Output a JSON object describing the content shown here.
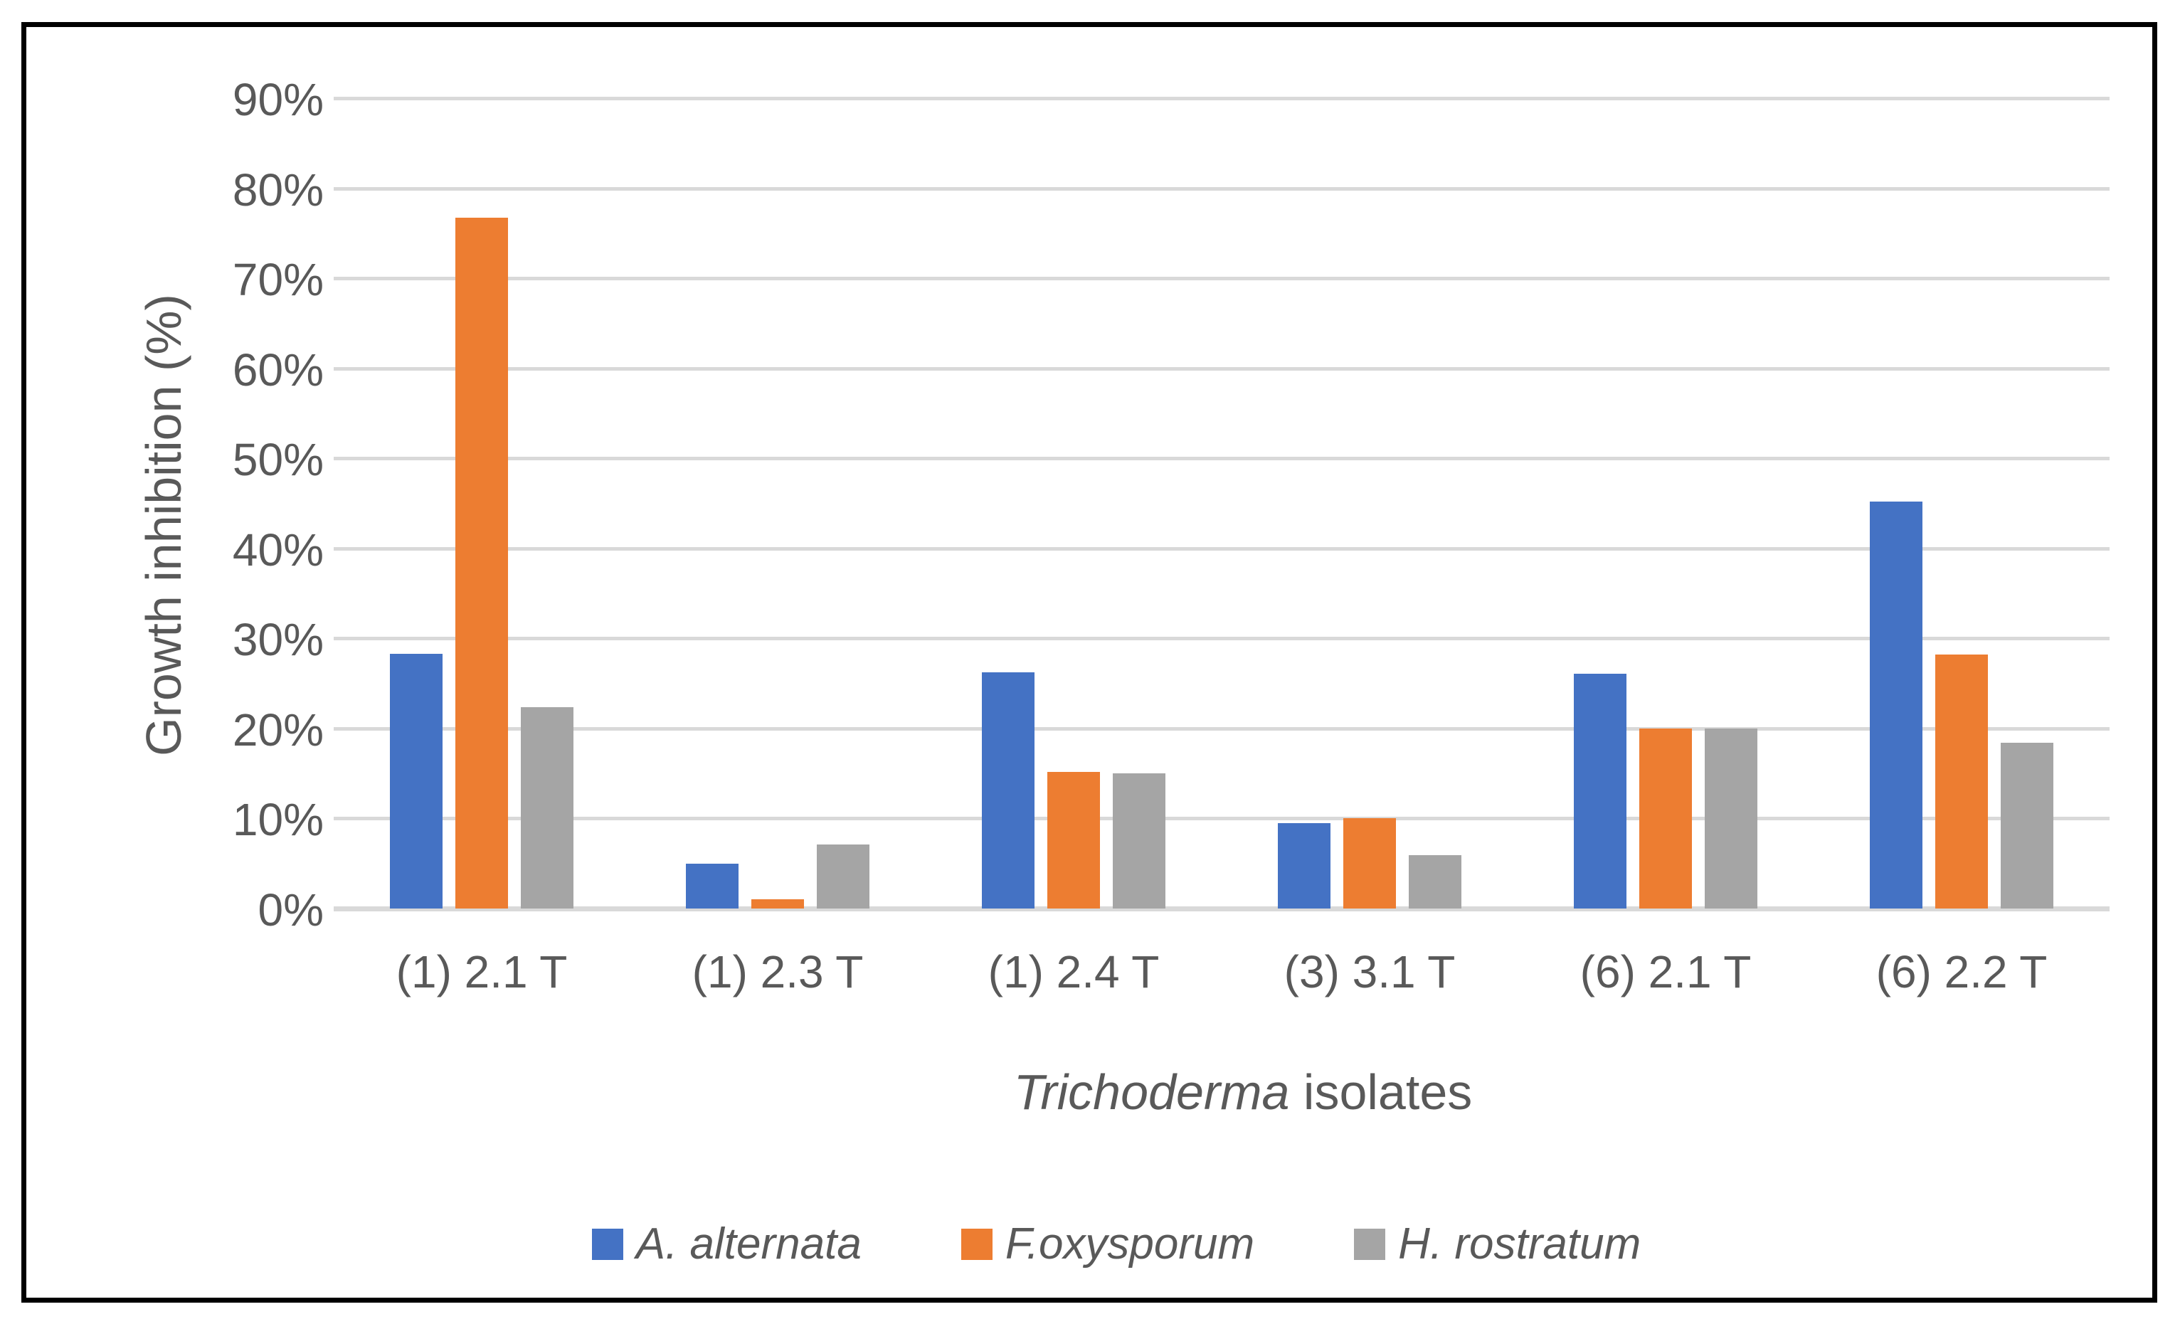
{
  "chart": {
    "y_axis_title": "Growth inhibition (%)",
    "x_axis_title_italic_part": "Trichoderma",
    "x_axis_title_regular_part": " isolates",
    "colors": {
      "series_blue": "#4472C4",
      "series_orange": "#ED7D31",
      "series_gray": "#A5A5A5",
      "gridline": "#D9D9D9",
      "axis_text": "#595959",
      "frame_border": "#000000",
      "background": "#FFFFFF"
    }
  },
  "chart_data": {
    "type": "bar",
    "title": "",
    "xlabel": "Trichoderma isolates",
    "ylabel": "Growth inhibition (%)",
    "categories": [
      "(1) 2.1 T",
      "(1) 2.3 T",
      "(1) 2.4 T",
      "(3) 3.1 T",
      "(6) 2.1 T",
      "(6) 2.2 T"
    ],
    "series": [
      {
        "name": "A. alternata",
        "color": "#4472C4",
        "values": [
          28.3,
          5.0,
          26.2,
          9.5,
          26.1,
          45.2
        ]
      },
      {
        "name": "F.oxysporum",
        "color": "#ED7D31",
        "values": [
          76.7,
          1.0,
          15.2,
          10.0,
          20.0,
          28.2
        ]
      },
      {
        "name": "H. rostratum",
        "color": "#A5A5A5",
        "values": [
          22.4,
          7.1,
          15.0,
          5.9,
          20.0,
          18.4
        ]
      }
    ],
    "ylim": [
      0,
      90
    ],
    "ytick_step": 10,
    "ytick_labels": [
      "0%",
      "10%",
      "20%",
      "30%",
      "40%",
      "50%",
      "60%",
      "70%",
      "80%",
      "90%"
    ],
    "grid": true,
    "legend_position": "bottom"
  }
}
